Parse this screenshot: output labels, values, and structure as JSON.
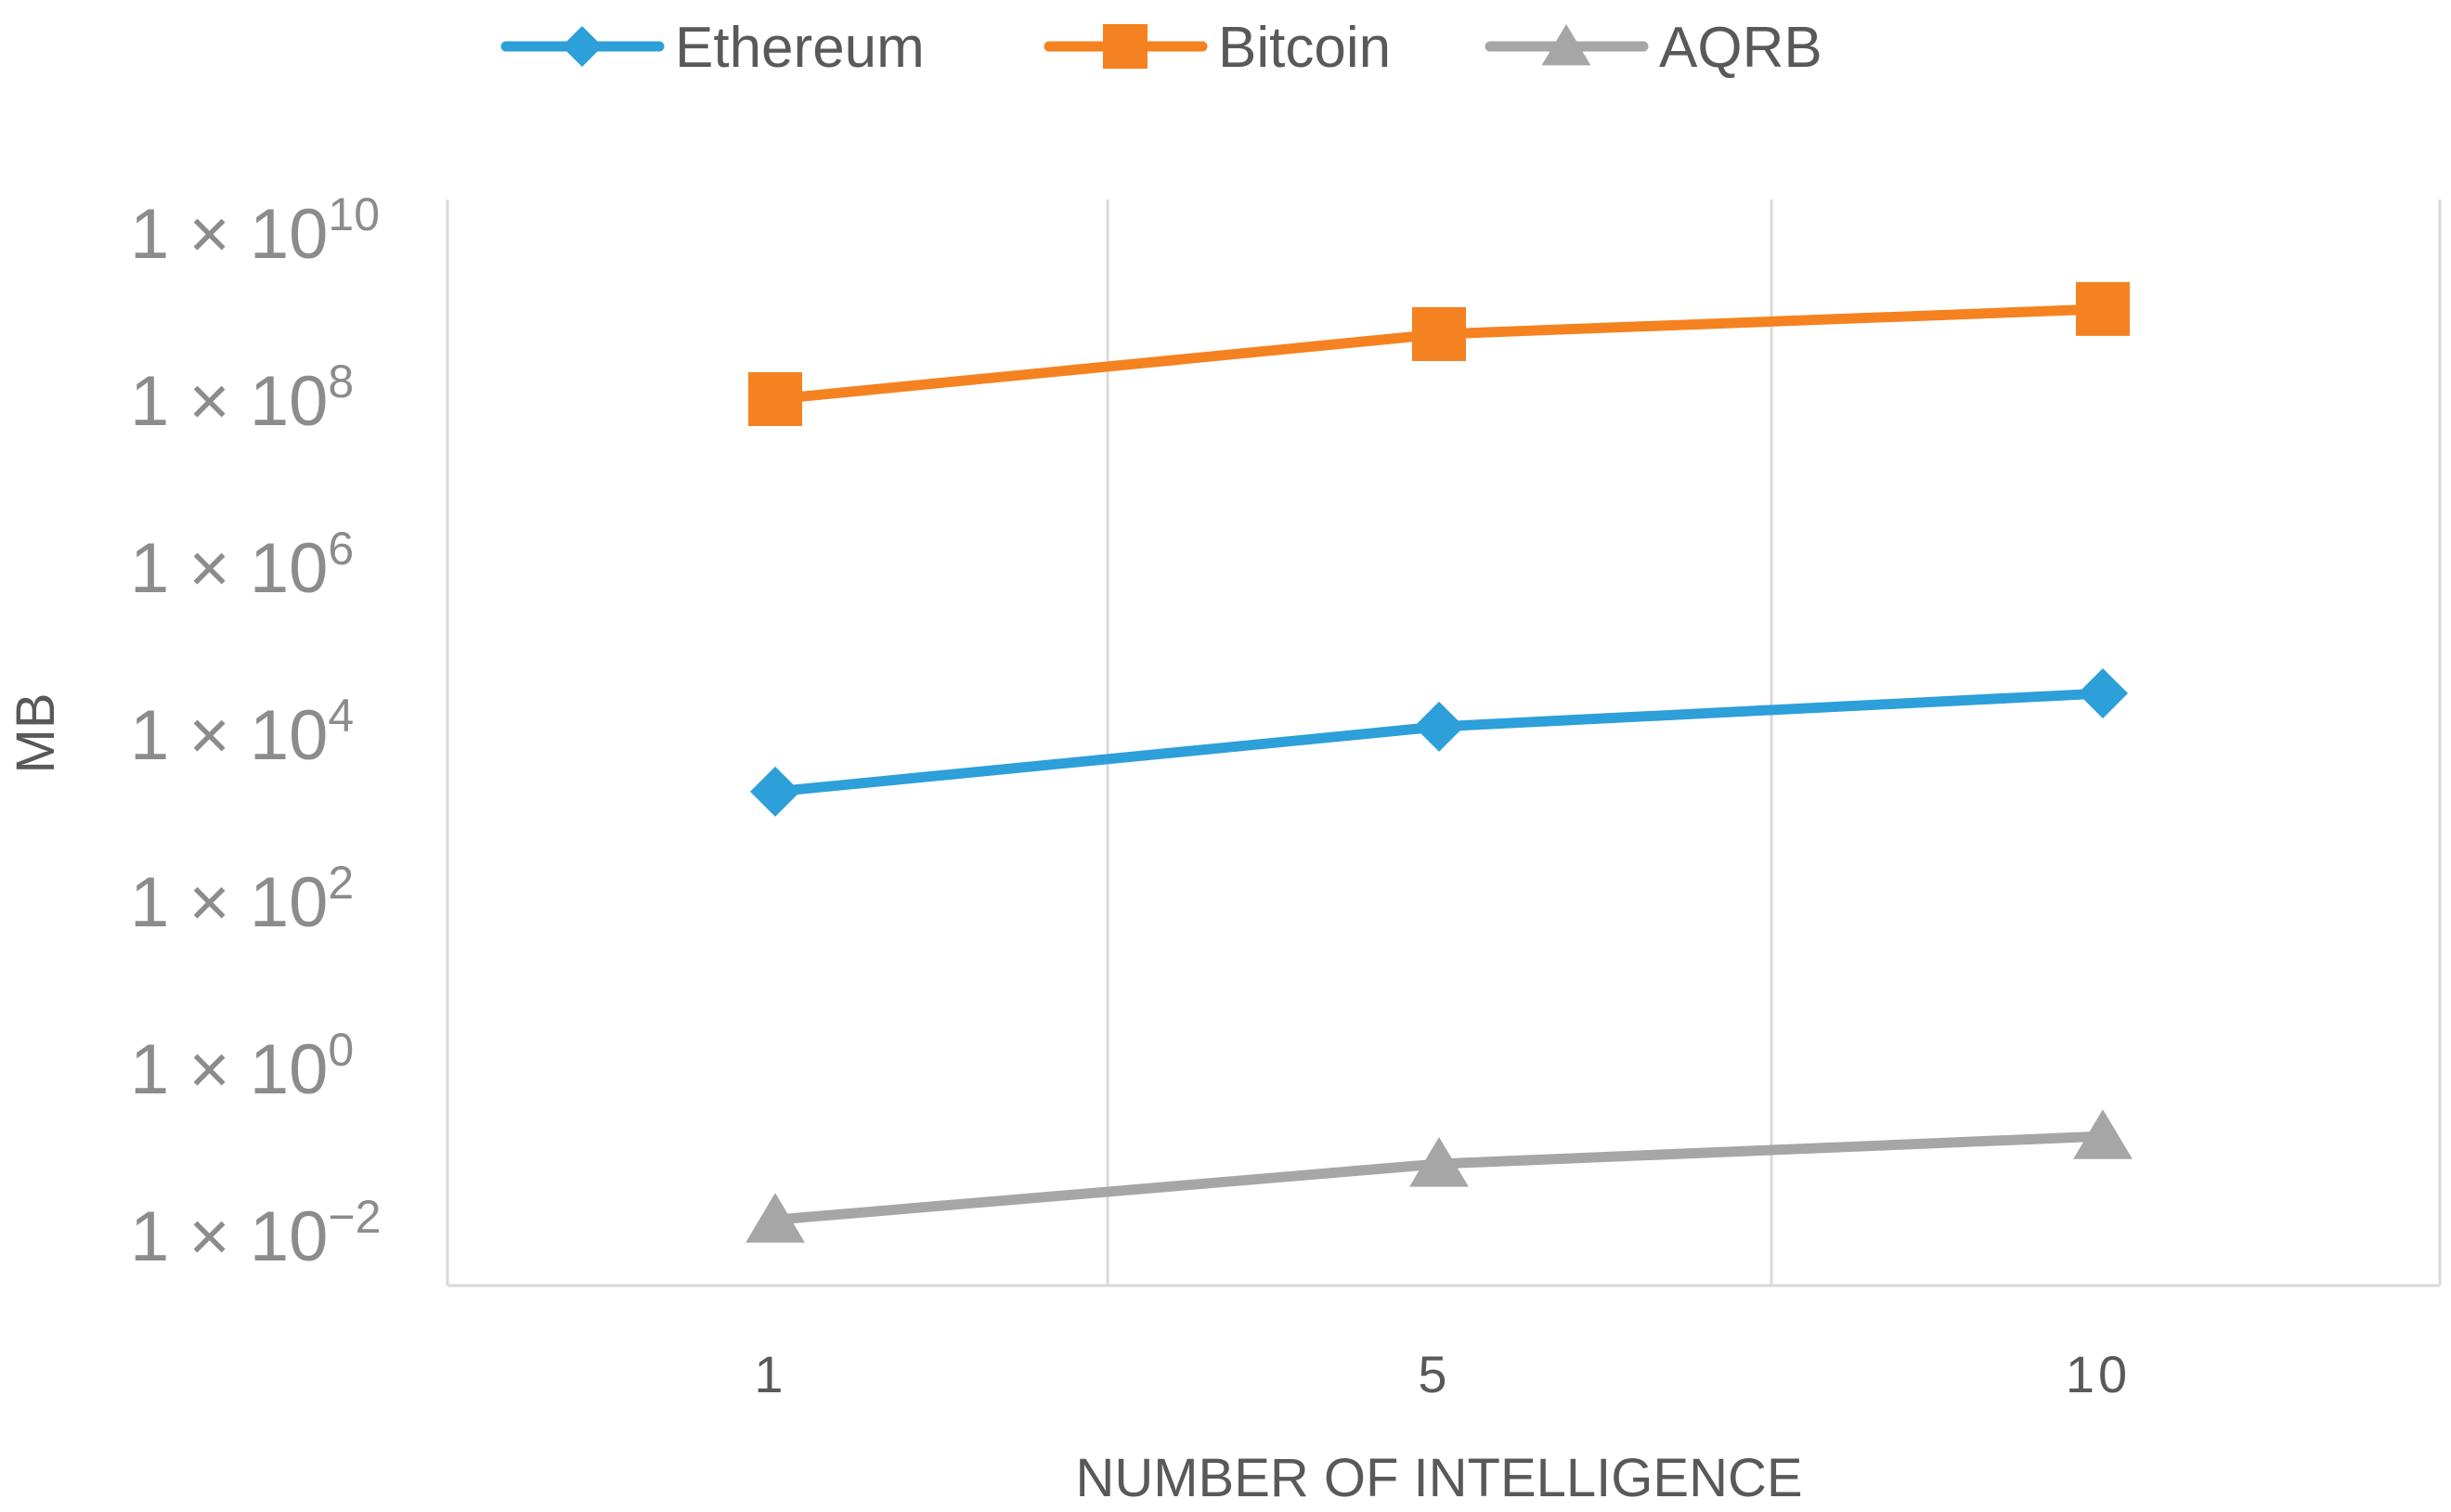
{
  "chart_data": {
    "type": "line",
    "x": [
      "1",
      "5",
      "10"
    ],
    "xlabel": "NUMBER OF INTELLIGENCE",
    "ylabel": "MB",
    "yscale": "log",
    "ylim": [
      0.01,
      10000000000
    ],
    "yticks": [
      {
        "value": 0.01,
        "base": "1 × 10",
        "exp": "−2"
      },
      {
        "value": 1,
        "base": "1 × 10",
        "exp": "0"
      },
      {
        "value": 100,
        "base": "1 × 10",
        "exp": "2"
      },
      {
        "value": 10000,
        "base": "1 × 10",
        "exp": "4"
      },
      {
        "value": 1000000,
        "base": "1 × 10",
        "exp": "6"
      },
      {
        "value": 100000000,
        "base": "1 × 10",
        "exp": "8"
      },
      {
        "value": 10000000000,
        "base": "1 × 10",
        "exp": "10"
      }
    ],
    "grid": "vertical",
    "legend_position": "top",
    "series": [
      {
        "name": "Ethereum",
        "color": "#2d9fd9",
        "marker": "diamond",
        "values": [
          2000,
          12000,
          30000
        ]
      },
      {
        "name": "Bitcoin",
        "color": "#f58220",
        "marker": "square",
        "values": [
          100000000,
          600000000,
          1200000000
        ]
      },
      {
        "name": "AQRB",
        "color": "#a6a6a6",
        "marker": "triangle",
        "values": [
          0.015,
          0.07,
          0.15
        ]
      }
    ]
  }
}
